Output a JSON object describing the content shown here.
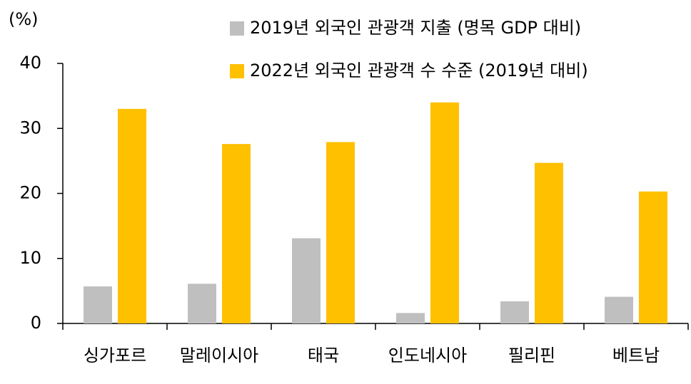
{
  "chart_data": {
    "type": "bar",
    "y_label": "(%)",
    "categories": [
      "싱가포르",
      "말레이시아",
      "태국",
      "인도네시아",
      "필리핀",
      "베트남"
    ],
    "series": [
      {
        "name": "2019년 외국인 관광객 지출 (명목 GDP 대비)",
        "color": "#bfbfbf",
        "values": [
          5.7,
          6.1,
          13.1,
          1.6,
          3.4,
          4.1
        ]
      },
      {
        "name": "2022년 외국인 관광객 수 수준 (2019년 대비)",
        "color": "#ffc000",
        "values": [
          33.0,
          27.6,
          27.9,
          34.0,
          24.7,
          20.3
        ]
      }
    ],
    "ylim": [
      0,
      40
    ],
    "yticks": [
      0,
      10,
      20,
      30,
      40
    ],
    "grid": false,
    "legend": "top-right"
  }
}
